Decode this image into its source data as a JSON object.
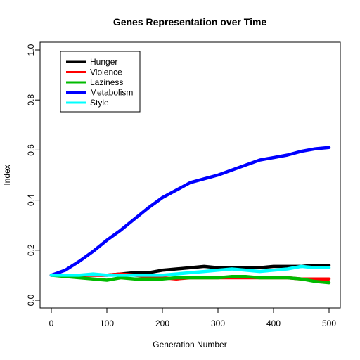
{
  "chart_data": {
    "type": "line",
    "title": "Genes Representation over Time",
    "xlabel": "Generation Number",
    "ylabel": "Index",
    "xlim": [
      0,
      500
    ],
    "ylim": [
      0,
      1
    ],
    "xticks": [
      0,
      100,
      200,
      300,
      400,
      500
    ],
    "yticks": [
      0.0,
      0.2,
      0.4,
      0.6,
      0.8,
      1.0
    ],
    "legend_position": "top-left",
    "grid": false,
    "x": [
      0,
      25,
      50,
      75,
      100,
      125,
      150,
      175,
      200,
      225,
      250,
      275,
      300,
      325,
      350,
      375,
      400,
      425,
      450,
      475,
      500
    ],
    "series": [
      {
        "name": "Hunger",
        "color": "#000000",
        "values": [
          0.1,
          0.1,
          0.1,
          0.1,
          0.1,
          0.105,
          0.11,
          0.11,
          0.12,
          0.125,
          0.13,
          0.135,
          0.13,
          0.13,
          0.13,
          0.13,
          0.135,
          0.135,
          0.135,
          0.14,
          0.14
        ]
      },
      {
        "name": "Violence",
        "color": "#ff0000",
        "values": [
          0.1,
          0.1,
          0.1,
          0.1,
          0.1,
          0.105,
          0.1,
          0.095,
          0.09,
          0.085,
          0.09,
          0.09,
          0.09,
          0.09,
          0.09,
          0.09,
          0.09,
          0.09,
          0.085,
          0.085,
          0.085
        ]
      },
      {
        "name": "Laziness",
        "color": "#00bb00",
        "values": [
          0.1,
          0.095,
          0.09,
          0.085,
          0.08,
          0.09,
          0.085,
          0.085,
          0.085,
          0.09,
          0.09,
          0.09,
          0.09,
          0.095,
          0.095,
          0.09,
          0.09,
          0.09,
          0.085,
          0.075,
          0.07
        ]
      },
      {
        "name": "Metabolism",
        "color": "#0000ff",
        "values": [
          0.1,
          0.12,
          0.155,
          0.195,
          0.24,
          0.28,
          0.325,
          0.37,
          0.41,
          0.44,
          0.47,
          0.485,
          0.5,
          0.52,
          0.54,
          0.56,
          0.57,
          0.58,
          0.595,
          0.605,
          0.61
        ]
      },
      {
        "name": "Style",
        "color": "#00ffff",
        "values": [
          0.1,
          0.1,
          0.1,
          0.105,
          0.1,
          0.1,
          0.1,
          0.1,
          0.1,
          0.105,
          0.11,
          0.115,
          0.12,
          0.125,
          0.12,
          0.115,
          0.12,
          0.125,
          0.135,
          0.13,
          0.13
        ]
      }
    ]
  }
}
